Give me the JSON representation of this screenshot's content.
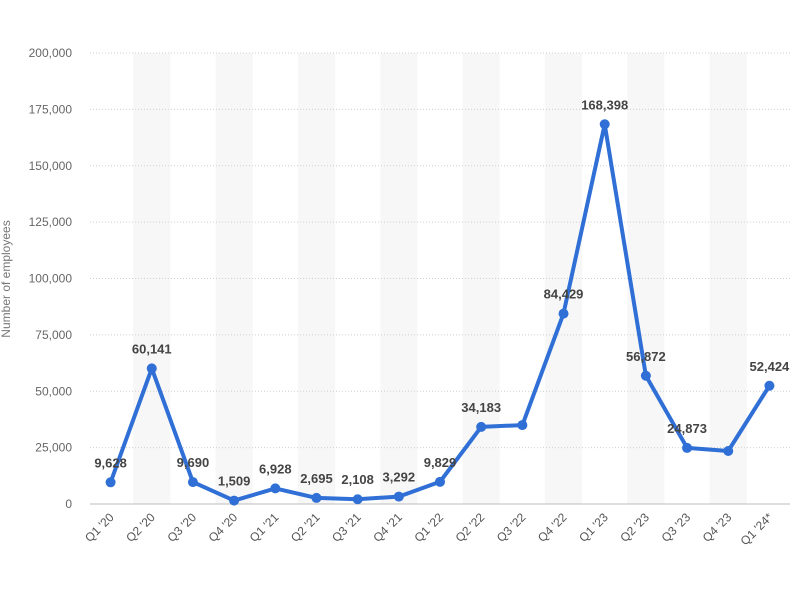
{
  "chart_data": {
    "type": "line",
    "title": "",
    "xlabel": "",
    "ylabel": "Number of employees",
    "categories": [
      "Q1 '20",
      "Q2 '20",
      "Q3 '20",
      "Q4 '20",
      "Q1 '21",
      "Q2 '21",
      "Q3 '21",
      "Q4 '21",
      "Q1 '22",
      "Q2 '22",
      "Q3 '22",
      "Q4 '22",
      "Q1 '23",
      "Q2 '23",
      "Q3 '23",
      "Q4 '23",
      "Q1 '24*"
    ],
    "series": [
      {
        "values": [
          9628,
          60141,
          9690,
          1509,
          6928,
          2695,
          2108,
          3292,
          9829,
          34183,
          35000,
          84429,
          168398,
          56872,
          24873,
          23500,
          52424
        ],
        "labels": [
          "9,628",
          "60,141",
          "9,690",
          "1,509",
          "6,928",
          "2,695",
          "2,108",
          "3,292",
          "9,829",
          "34,183",
          "",
          "84,429",
          "168,398",
          "56,872",
          "24,873",
          "",
          "52,424"
        ]
      }
    ],
    "ylim": [
      0,
      200000
    ],
    "yticks": [
      0,
      25000,
      50000,
      75000,
      100000,
      125000,
      150000,
      175000,
      200000
    ],
    "ytick_labels": [
      "0",
      "25,000",
      "50,000",
      "75,000",
      "100,000",
      "125,000",
      "150,000",
      "175,000",
      "200,000"
    ],
    "grid": true,
    "legend": "none",
    "colors": {
      "line": "#2f6fd6",
      "band": "#f7f7f7"
    }
  }
}
